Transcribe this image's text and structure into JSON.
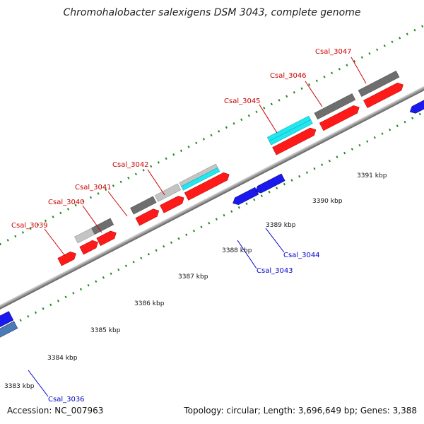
{
  "title": "Chromohalobacter salexigens DSM 3043, complete genome",
  "accession": "Accession: NC_007963",
  "summary": "Topology: circular; Length: 3,696,649 bp; Genes: 3,388",
  "colors": {
    "forward_cds": "#ff1a1a",
    "reverse_cds": "#1a1aee",
    "gray_dark": "#6e6e6e",
    "gray_light": "#c4c4c4",
    "cyan": "#22e6f0",
    "steel": "#4a7ab8",
    "tick": "#1e8a1e",
    "label_forward": "#cc0000",
    "label_reverse": "#0000cc"
  },
  "kbp_labels": [
    "3383 kbp",
    "3384 kbp",
    "3385 kbp",
    "3386 kbp",
    "3387 kbp",
    "3388 kbp",
    "3389 kbp",
    "3390 kbp",
    "3391 kbp"
  ],
  "gene_labels": [
    {
      "text": "Csal_3039",
      "strand": "forward"
    },
    {
      "text": "Csal_3040",
      "strand": "forward"
    },
    {
      "text": "Csal_3041",
      "strand": "forward"
    },
    {
      "text": "Csal_3042",
      "strand": "forward"
    },
    {
      "text": "Csal_3045",
      "strand": "forward"
    },
    {
      "text": "Csal_3046",
      "strand": "forward"
    },
    {
      "text": "Csal_3047",
      "strand": "forward"
    },
    {
      "text": "Csal_3036",
      "strand": "reverse"
    },
    {
      "text": "Csal_3043",
      "strand": "reverse"
    },
    {
      "text": "Csal_3044",
      "strand": "reverse"
    }
  ]
}
